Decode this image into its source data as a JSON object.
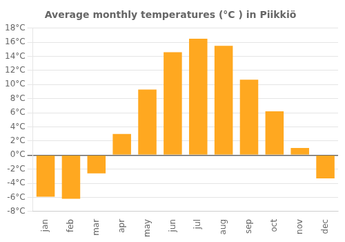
{
  "chart_data": {
    "type": "bar",
    "title": "Average monthly temperatures (°C ) in Piikkiö",
    "categories": [
      "jan",
      "feb",
      "mar",
      "apr",
      "may",
      "jun",
      "jul",
      "aug",
      "sep",
      "oct",
      "nov",
      "dec"
    ],
    "values": [
      -5.9,
      -6.2,
      -2.6,
      3.0,
      9.3,
      14.6,
      16.5,
      15.5,
      10.7,
      6.2,
      1.0,
      -3.3
    ],
    "color": "#FFA820",
    "ylim": [
      -8,
      18
    ],
    "yticks": [
      {
        "value": -8,
        "label": "-8°C"
      },
      {
        "value": -6,
        "label": "-6°C"
      },
      {
        "value": -4,
        "label": "-4°C"
      },
      {
        "value": -2,
        "label": "-2°C"
      },
      {
        "value": 0,
        "label": "0°C"
      },
      {
        "value": 2,
        "label": "2°C"
      },
      {
        "value": 4,
        "label": "4°C"
      },
      {
        "value": 6,
        "label": "6°C"
      },
      {
        "value": 8,
        "label": "8°C"
      },
      {
        "value": 10,
        "label": "10°C"
      },
      {
        "value": 12,
        "label": "12°C"
      },
      {
        "value": 14,
        "label": "14°C"
      },
      {
        "value": 16,
        "label": "16°C"
      },
      {
        "value": 18,
        "label": "18°C"
      }
    ],
    "grid": true
  }
}
